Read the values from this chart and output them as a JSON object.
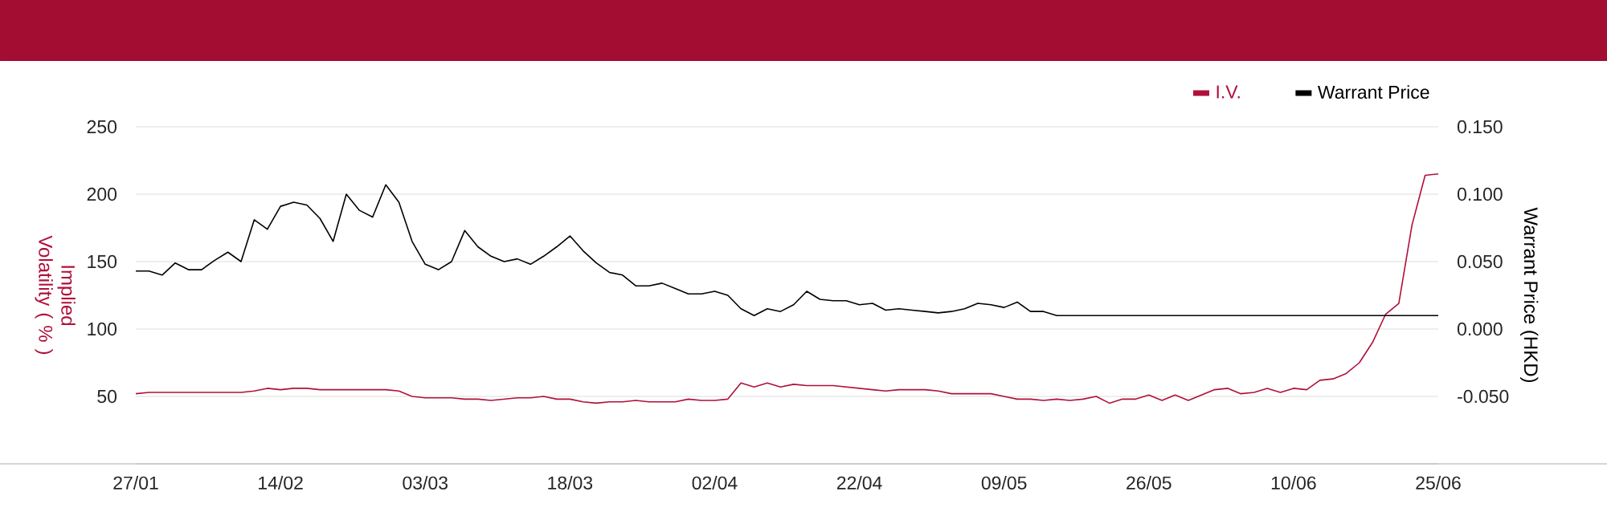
{
  "chart_data": {
    "type": "line",
    "ylabel": "Implied Volatility ( % )",
    "y2label": "Warrant Price (HKD)",
    "categories": [
      "27/01",
      null,
      null,
      null,
      null,
      null,
      null,
      null,
      null,
      null,
      null,
      "14/02",
      null,
      null,
      null,
      null,
      null,
      null,
      null,
      null,
      null,
      null,
      "03/03",
      null,
      null,
      null,
      null,
      null,
      null,
      null,
      null,
      null,
      null,
      "18/03",
      null,
      null,
      null,
      null,
      null,
      null,
      null,
      null,
      null,
      null,
      "02/04",
      null,
      null,
      null,
      null,
      null,
      null,
      null,
      null,
      null,
      null,
      "22/04",
      null,
      null,
      null,
      null,
      null,
      null,
      null,
      null,
      null,
      null,
      "09/05",
      null,
      null,
      null,
      null,
      null,
      null,
      null,
      null,
      null,
      null,
      "26/05",
      null,
      null,
      null,
      null,
      null,
      null,
      null,
      null,
      null,
      null,
      "10/06",
      null,
      null,
      null,
      null,
      null,
      null,
      null,
      null,
      null,
      null,
      "25/06"
    ],
    "series": [
      {
        "name": "I.V.",
        "color": "#b0103a",
        "axis": "y",
        "values": [
          52,
          53,
          53,
          53,
          53,
          53,
          53,
          53,
          53,
          54,
          56,
          55,
          56,
          56,
          55,
          55,
          55,
          55,
          55,
          55,
          54,
          50,
          49,
          49,
          49,
          48,
          48,
          47,
          48,
          49,
          49,
          50,
          48,
          48,
          46,
          45,
          46,
          46,
          47,
          46,
          46,
          46,
          48,
          47,
          47,
          48,
          60,
          57,
          60,
          57,
          59,
          58,
          58,
          58,
          57,
          56,
          55,
          54,
          55,
          55,
          55,
          54,
          52,
          52,
          52,
          52,
          50,
          48,
          48,
          47,
          48,
          47,
          48,
          50,
          45,
          48,
          48,
          51,
          47,
          51,
          47,
          51,
          55,
          56,
          52,
          53,
          56,
          53,
          56,
          55,
          62,
          63,
          67,
          75,
          90,
          111,
          119,
          177,
          214,
          215
        ]
      },
      {
        "name": "Warrant Price",
        "color": "#000000",
        "axis": "y2",
        "values": [
          0.043,
          0.043,
          0.04,
          0.049,
          0.044,
          0.044,
          0.051,
          0.057,
          0.05,
          0.081,
          0.074,
          0.091,
          0.094,
          0.092,
          0.082,
          0.065,
          0.1,
          0.088,
          0.083,
          0.107,
          0.094,
          0.065,
          0.048,
          0.044,
          0.05,
          0.073,
          0.061,
          0.054,
          0.05,
          0.052,
          0.048,
          0.054,
          0.061,
          0.069,
          0.058,
          0.049,
          0.042,
          0.04,
          0.032,
          0.032,
          0.034,
          0.03,
          0.026,
          0.026,
          0.028,
          0.025,
          0.015,
          0.01,
          0.015,
          0.013,
          0.018,
          0.028,
          0.022,
          0.021,
          0.021,
          0.018,
          0.019,
          0.014,
          0.015,
          0.014,
          0.013,
          0.012,
          0.013,
          0.015,
          0.019,
          0.018,
          0.016,
          0.02,
          0.013,
          0.013,
          0.01,
          0.01,
          0.01,
          0.01,
          0.01,
          0.01,
          0.01,
          0.01,
          0.01,
          0.01,
          0.01,
          0.01,
          0.01,
          0.01,
          0.01,
          0.01,
          0.01,
          0.01,
          0.01,
          0.01,
          0.01,
          0.01,
          0.01,
          0.01,
          0.01,
          0.01,
          0.01,
          0.01,
          0.01,
          0.01
        ]
      }
    ],
    "ylim": [
      0,
      250
    ],
    "yticks": [
      50,
      100,
      150,
      200,
      250
    ],
    "y2lim": [
      -0.1,
      0.15
    ],
    "y2ticks": [
      {
        "value": -0.05,
        "label": "-0.050"
      },
      {
        "value": 0,
        "label": "0.000"
      },
      {
        "value": 0.05,
        "label": "0.050"
      },
      {
        "value": 0.1,
        "label": "0.100"
      },
      {
        "value": 0.15,
        "label": "0.150"
      }
    ],
    "grid": "y",
    "legend": "top right"
  }
}
